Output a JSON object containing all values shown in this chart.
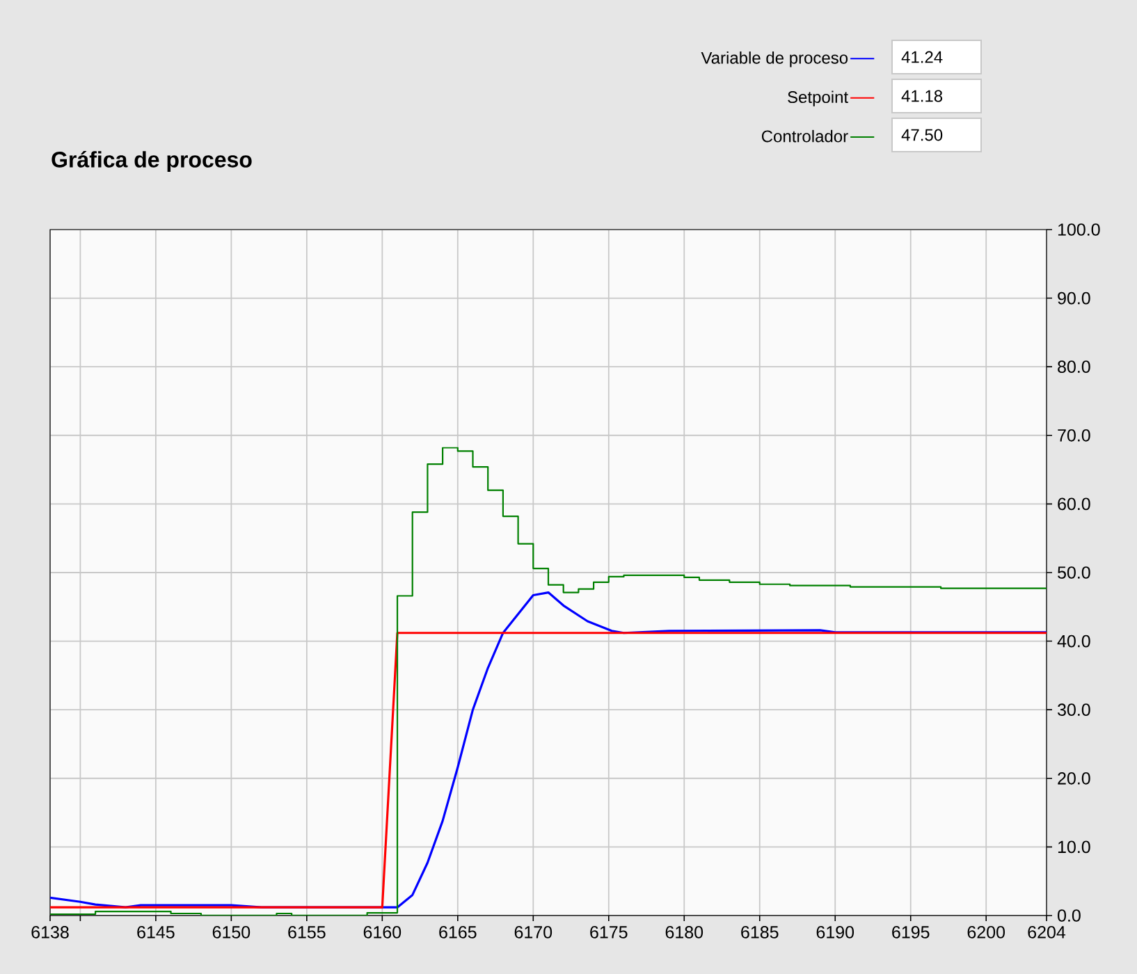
{
  "chart_data": {
    "type": "line",
    "title": "Gráfica de proceso",
    "x": [
      6138,
      6140,
      6141,
      6143,
      6144,
      6150,
      6152,
      6161,
      6162,
      6163,
      6164,
      6165,
      6166,
      6167,
      6168,
      6170,
      6171,
      6172,
      6173.6,
      6175.2,
      6176,
      6179,
      6189,
      6190,
      6204
    ],
    "series": [
      {
        "name": "Variable de proceso",
        "color": "#0000ff",
        "values": [
          2.6,
          2.0,
          1.6,
          1.2,
          1.5,
          1.5,
          1.2,
          1.2,
          3.0,
          7.7,
          13.8,
          21.6,
          30.0,
          36.1,
          41.2,
          46.7,
          47.1,
          45.2,
          42.9,
          41.5,
          41.2,
          41.5,
          41.6,
          41.3,
          41.3
        ]
      },
      {
        "name": "Setpoint",
        "color": "#ff0000",
        "x": [
          6138,
          6160,
          6161,
          6204
        ],
        "values": [
          1.2,
          1.2,
          41.2,
          41.2
        ]
      },
      {
        "name": "Controlador",
        "color": "#008000",
        "type": "step",
        "x": [
          6138,
          6141,
          6146,
          6148,
          6153,
          6154,
          6159,
          6161,
          6162,
          6163,
          6164,
          6165,
          6166,
          6167,
          6168,
          6169,
          6170,
          6171,
          6172,
          6173,
          6174,
          6175,
          6176,
          6179,
          6180,
          6181,
          6183,
          6185,
          6187,
          6191,
          6197,
          6204
        ],
        "values": [
          0.2,
          0.6,
          0.3,
          0.0,
          0.3,
          0.0,
          0.4,
          46.6,
          58.8,
          65.8,
          68.2,
          67.7,
          65.4,
          62.0,
          58.2,
          54.2,
          50.6,
          48.2,
          47.1,
          47.6,
          48.6,
          49.4,
          49.6,
          49.6,
          49.3,
          48.9,
          48.6,
          48.3,
          48.1,
          47.9,
          47.7,
          47.7
        ]
      }
    ],
    "xlim": [
      6138,
      6204
    ],
    "xticks": [
      6138,
      {
        "value": 6140,
        "label": null
      },
      6145,
      6150,
      6155,
      6160,
      6165,
      6170,
      6175,
      6180,
      6185,
      6190,
      6195,
      6200,
      6204
    ],
    "ylim": [
      0,
      100
    ],
    "yticks": [
      {
        "value": 0,
        "label": "0.0"
      },
      {
        "value": 10,
        "label": "10.0"
      },
      {
        "value": 20,
        "label": "20.0"
      },
      {
        "value": 30,
        "label": "30.0"
      },
      {
        "value": 40,
        "label": "40.0"
      },
      {
        "value": 50,
        "label": "50.0"
      },
      {
        "value": 60,
        "label": "60.0"
      },
      {
        "value": 70,
        "label": "70.0"
      },
      {
        "value": 80,
        "label": "80.0"
      },
      {
        "value": 90,
        "label": "90.0"
      },
      {
        "value": 100,
        "label": "100.0"
      }
    ],
    "grid": true,
    "legend": "top right",
    "annotations": [
      "41.24",
      "41.18",
      "47.50"
    ]
  }
}
